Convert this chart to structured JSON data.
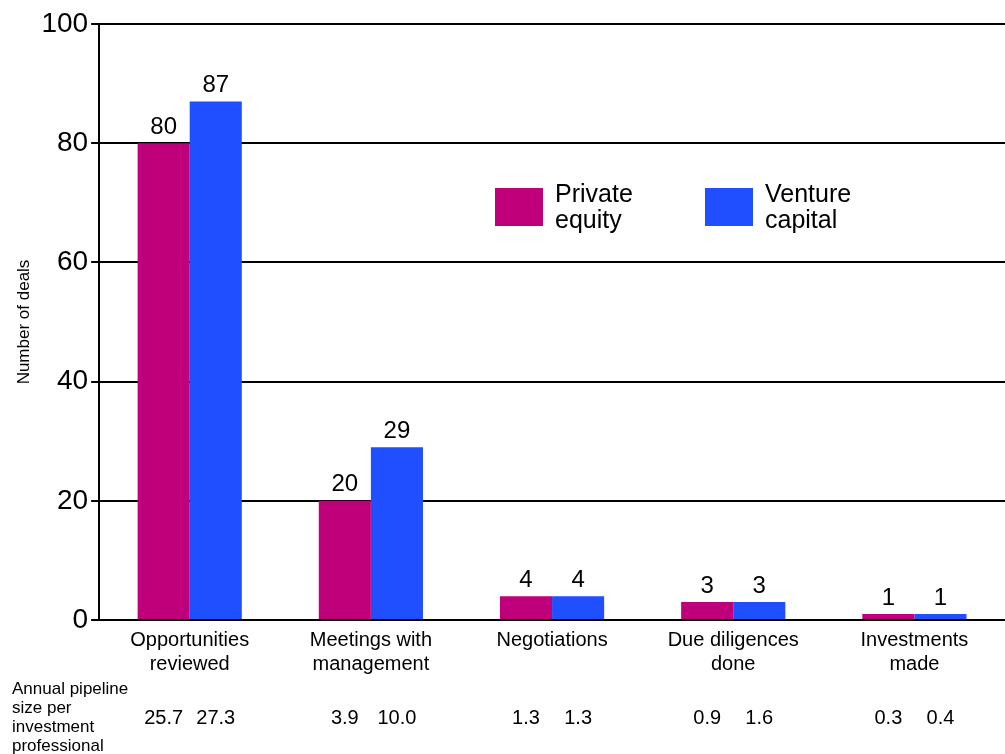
{
  "chart_data": {
    "type": "bar",
    "ylabel": "Number of deals",
    "categories": [
      "Opportunities reviewed",
      "Meetings with management",
      "Negotiations",
      "Due diligences done",
      "Investments made"
    ],
    "series": [
      {
        "name": "Private equity",
        "color": "#c0007a",
        "values": [
          80,
          20,
          4,
          3,
          1
        ]
      },
      {
        "name": "Venture capital",
        "color": "#1f4fff",
        "values": [
          87,
          29,
          4,
          3,
          1
        ]
      }
    ],
    "ylim": [
      0,
      100
    ],
    "yticks": [
      0,
      20,
      40,
      60,
      80,
      100
    ],
    "grid": "y",
    "legend": "top right",
    "data_labels": true,
    "annotations": [
      "Annual pipeline size per investment professional",
      "25.7",
      "27.3",
      "3.9",
      "10.0",
      "1.3",
      "1.3",
      "0.9",
      "1.6",
      "0.3",
      "0.4"
    ]
  }
}
